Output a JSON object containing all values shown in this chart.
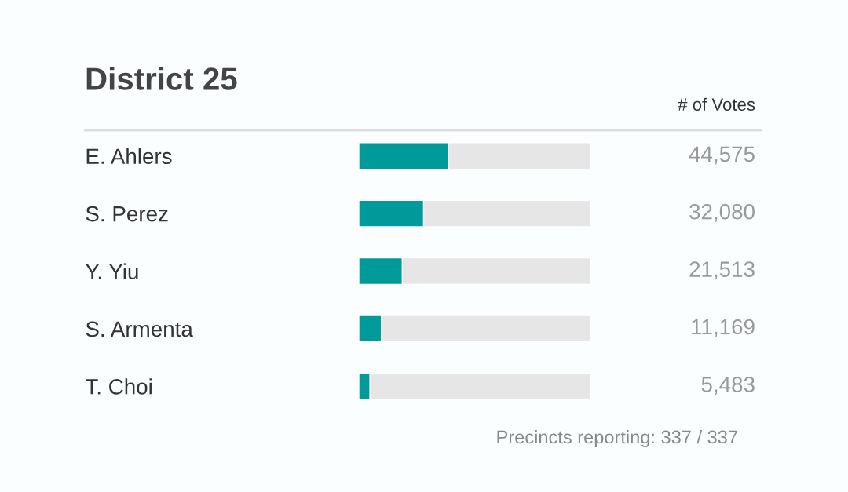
{
  "chart_data": {
    "type": "bar",
    "orientation": "horizontal",
    "title": "District 25",
    "categories": [
      "E. Ahlers",
      "S. Perez",
      "Y. Yiu",
      "S. Armenta",
      "T. Choi"
    ],
    "values": [
      44575,
      32080,
      21513,
      11169,
      5483
    ],
    "value_labels": [
      "44,575",
      "32,080",
      "21,513",
      "11,169",
      "5,483"
    ],
    "color": "#009a9a",
    "xlim": [
      0,
      114820
    ],
    "tick_labels": "y",
    "annotations": [
      "# of Votes",
      "Precincts reporting: 337 / 337"
    ]
  }
}
